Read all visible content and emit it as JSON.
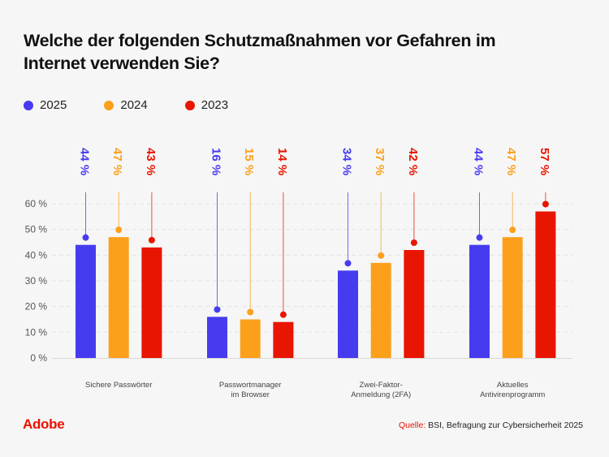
{
  "colors": {
    "2025": "#473bf0",
    "2024": "#fca01c",
    "2023": "#e81500",
    "grid": "#dddddd",
    "axis_text": "#555555",
    "brand": "#eb1000"
  },
  "chart_data": {
    "type": "bar",
    "title": "Welche der folgenden Schutzmaßnahmen vor Gefahren im Internet verwenden Sie?",
    "xlabel": "",
    "ylabel": "",
    "ylim": [
      0,
      60
    ],
    "yticks": [
      0,
      10,
      20,
      30,
      40,
      50,
      60
    ],
    "ytick_labels": [
      "0 %",
      "10 %",
      "20 %",
      "30 %",
      "40 %",
      "50 %",
      "60 %"
    ],
    "grid": true,
    "legend_position": "top-left",
    "categories": [
      "Sichere Passwörter",
      "Passwortmanager im Browser",
      "Zwei-Faktor-Anmeldung (2FA)",
      "Aktuelles Antivirenprogramm"
    ],
    "category_lines": [
      [
        "Sichere Passwörter"
      ],
      [
        "Passwortmanager",
        "im Browser"
      ],
      [
        "Zwei-Faktor-",
        "Anmeldung (2FA)"
      ],
      [
        "Aktuelles",
        "Antivirenprogramm"
      ]
    ],
    "series": [
      {
        "name": "2025",
        "color": "#473bf0",
        "values": [
          44,
          16,
          34,
          44
        ]
      },
      {
        "name": "2024",
        "color": "#fca01c",
        "values": [
          47,
          15,
          37,
          47
        ]
      },
      {
        "name": "2023",
        "color": "#e81500",
        "values": [
          43,
          14,
          42,
          57
        ]
      }
    ],
    "value_suffix": " %"
  },
  "legend": [
    {
      "label": "2025",
      "color": "#473bf0"
    },
    {
      "label": "2024",
      "color": "#fca01c"
    },
    {
      "label": "2023",
      "color": "#e81500"
    }
  ],
  "footer": {
    "logo": "Adobe",
    "source_label": "Quelle:",
    "source_text": " BSI, Befragung zur Cybersicherheit 2025"
  }
}
